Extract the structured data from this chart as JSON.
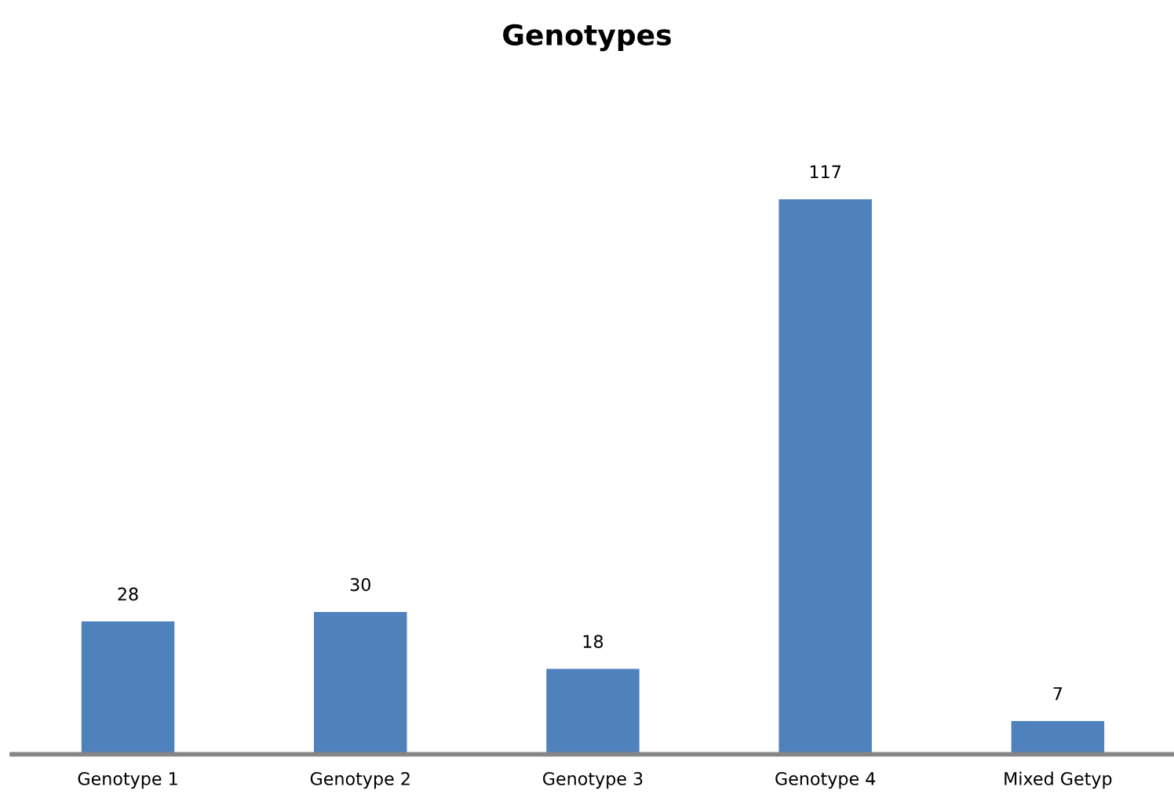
{
  "chart_data": {
    "type": "bar",
    "title": "Genotypes",
    "categories": [
      "Genotype 1",
      "Genotype 2",
      "Genotype 3",
      "Genotype 4",
      "Mixed Getyp"
    ],
    "values": [
      28,
      30,
      18,
      117,
      7
    ],
    "color": "#4f81bd",
    "data_labels": true,
    "grid": false,
    "legend": false
  }
}
